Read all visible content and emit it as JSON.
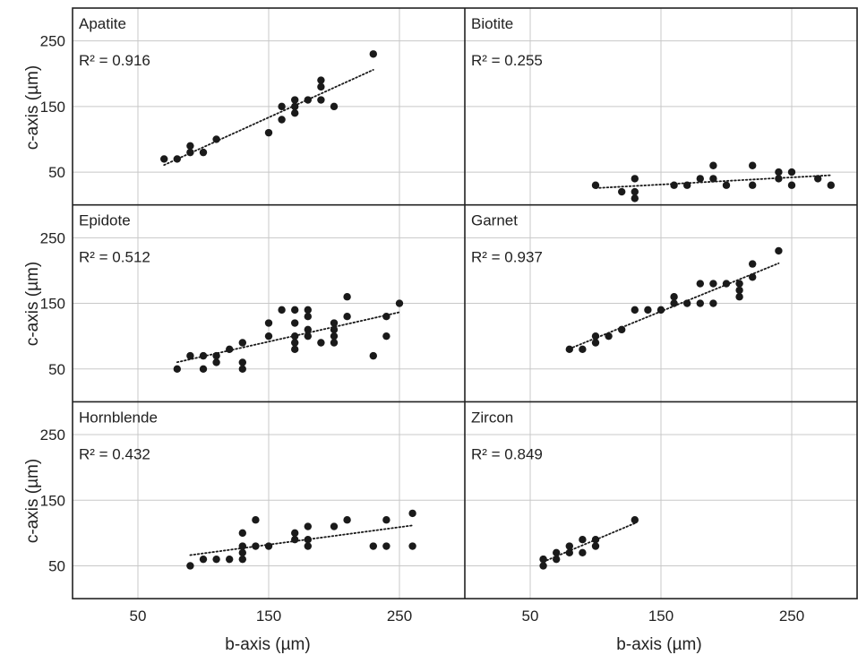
{
  "chart_data": {
    "type": "scatter",
    "layout": "3x2 small multiples",
    "xlabel": "b-axis (µm)",
    "ylabel": "c-axis (µm)",
    "xlim": [
      0,
      300
    ],
    "ylim": [
      0,
      300
    ],
    "xticks": [
      50,
      150,
      250
    ],
    "yticks": [
      50,
      150,
      250
    ],
    "grid": true,
    "trendline": "linear, dotted",
    "panels": [
      {
        "name": "Apatite",
        "r2_label": "R² = 0.916",
        "x": [
          70,
          80,
          90,
          90,
          100,
          110,
          150,
          160,
          160,
          170,
          170,
          170,
          180,
          190,
          190,
          190,
          200,
          230
        ],
        "y": [
          70,
          70,
          80,
          90,
          80,
          100,
          110,
          130,
          150,
          140,
          150,
          160,
          160,
          160,
          180,
          190,
          150,
          230
        ]
      },
      {
        "name": "Biotite",
        "r2_label": "R² = 0.255",
        "x": [
          100,
          120,
          130,
          130,
          130,
          160,
          170,
          180,
          190,
          190,
          200,
          220,
          220,
          240,
          240,
          250,
          250,
          270,
          280
        ],
        "y": [
          30,
          20,
          10,
          20,
          40,
          30,
          30,
          40,
          40,
          60,
          30,
          30,
          60,
          40,
          50,
          30,
          50,
          40,
          30
        ]
      },
      {
        "name": "Epidote",
        "r2_label": "R² = 0.512",
        "x": [
          80,
          90,
          100,
          100,
          110,
          110,
          120,
          130,
          130,
          130,
          150,
          150,
          160,
          170,
          170,
          170,
          170,
          170,
          180,
          180,
          180,
          180,
          190,
          200,
          200,
          200,
          200,
          210,
          210,
          230,
          240,
          240,
          250
        ],
        "y": [
          50,
          70,
          50,
          70,
          60,
          70,
          80,
          50,
          60,
          90,
          100,
          120,
          140,
          80,
          90,
          100,
          120,
          140,
          100,
          110,
          130,
          140,
          90,
          90,
          100,
          110,
          120,
          130,
          160,
          70,
          100,
          130,
          150
        ]
      },
      {
        "name": "Garnet",
        "r2_label": "R² = 0.937",
        "x": [
          80,
          90,
          100,
          100,
          110,
          120,
          130,
          140,
          150,
          160,
          160,
          170,
          180,
          180,
          190,
          190,
          200,
          210,
          210,
          210,
          220,
          220,
          240
        ],
        "y": [
          80,
          80,
          90,
          100,
          100,
          110,
          140,
          140,
          140,
          150,
          160,
          150,
          150,
          180,
          150,
          180,
          180,
          160,
          170,
          180,
          190,
          210,
          230
        ]
      },
      {
        "name": "Hornblende",
        "r2_label": "R² = 0.432",
        "x": [
          90,
          100,
          110,
          120,
          130,
          130,
          130,
          130,
          140,
          140,
          150,
          170,
          170,
          180,
          180,
          180,
          200,
          210,
          230,
          240,
          240,
          260,
          260
        ],
        "y": [
          50,
          60,
          60,
          60,
          60,
          70,
          80,
          100,
          80,
          120,
          80,
          90,
          100,
          80,
          90,
          110,
          110,
          120,
          80,
          80,
          120,
          80,
          130
        ]
      },
      {
        "name": "Zircon",
        "r2_label": "R² = 0.849",
        "x": [
          60,
          60,
          60,
          70,
          70,
          80,
          80,
          90,
          90,
          100,
          100,
          130
        ],
        "y": [
          50,
          60,
          60,
          60,
          70,
          70,
          80,
          70,
          90,
          80,
          90,
          120
        ]
      }
    ],
    "colors": {
      "points": "#1a1a1a",
      "trend": "#1a1a1a",
      "grid": "#c8c8c8",
      "frame": "#222222"
    }
  }
}
